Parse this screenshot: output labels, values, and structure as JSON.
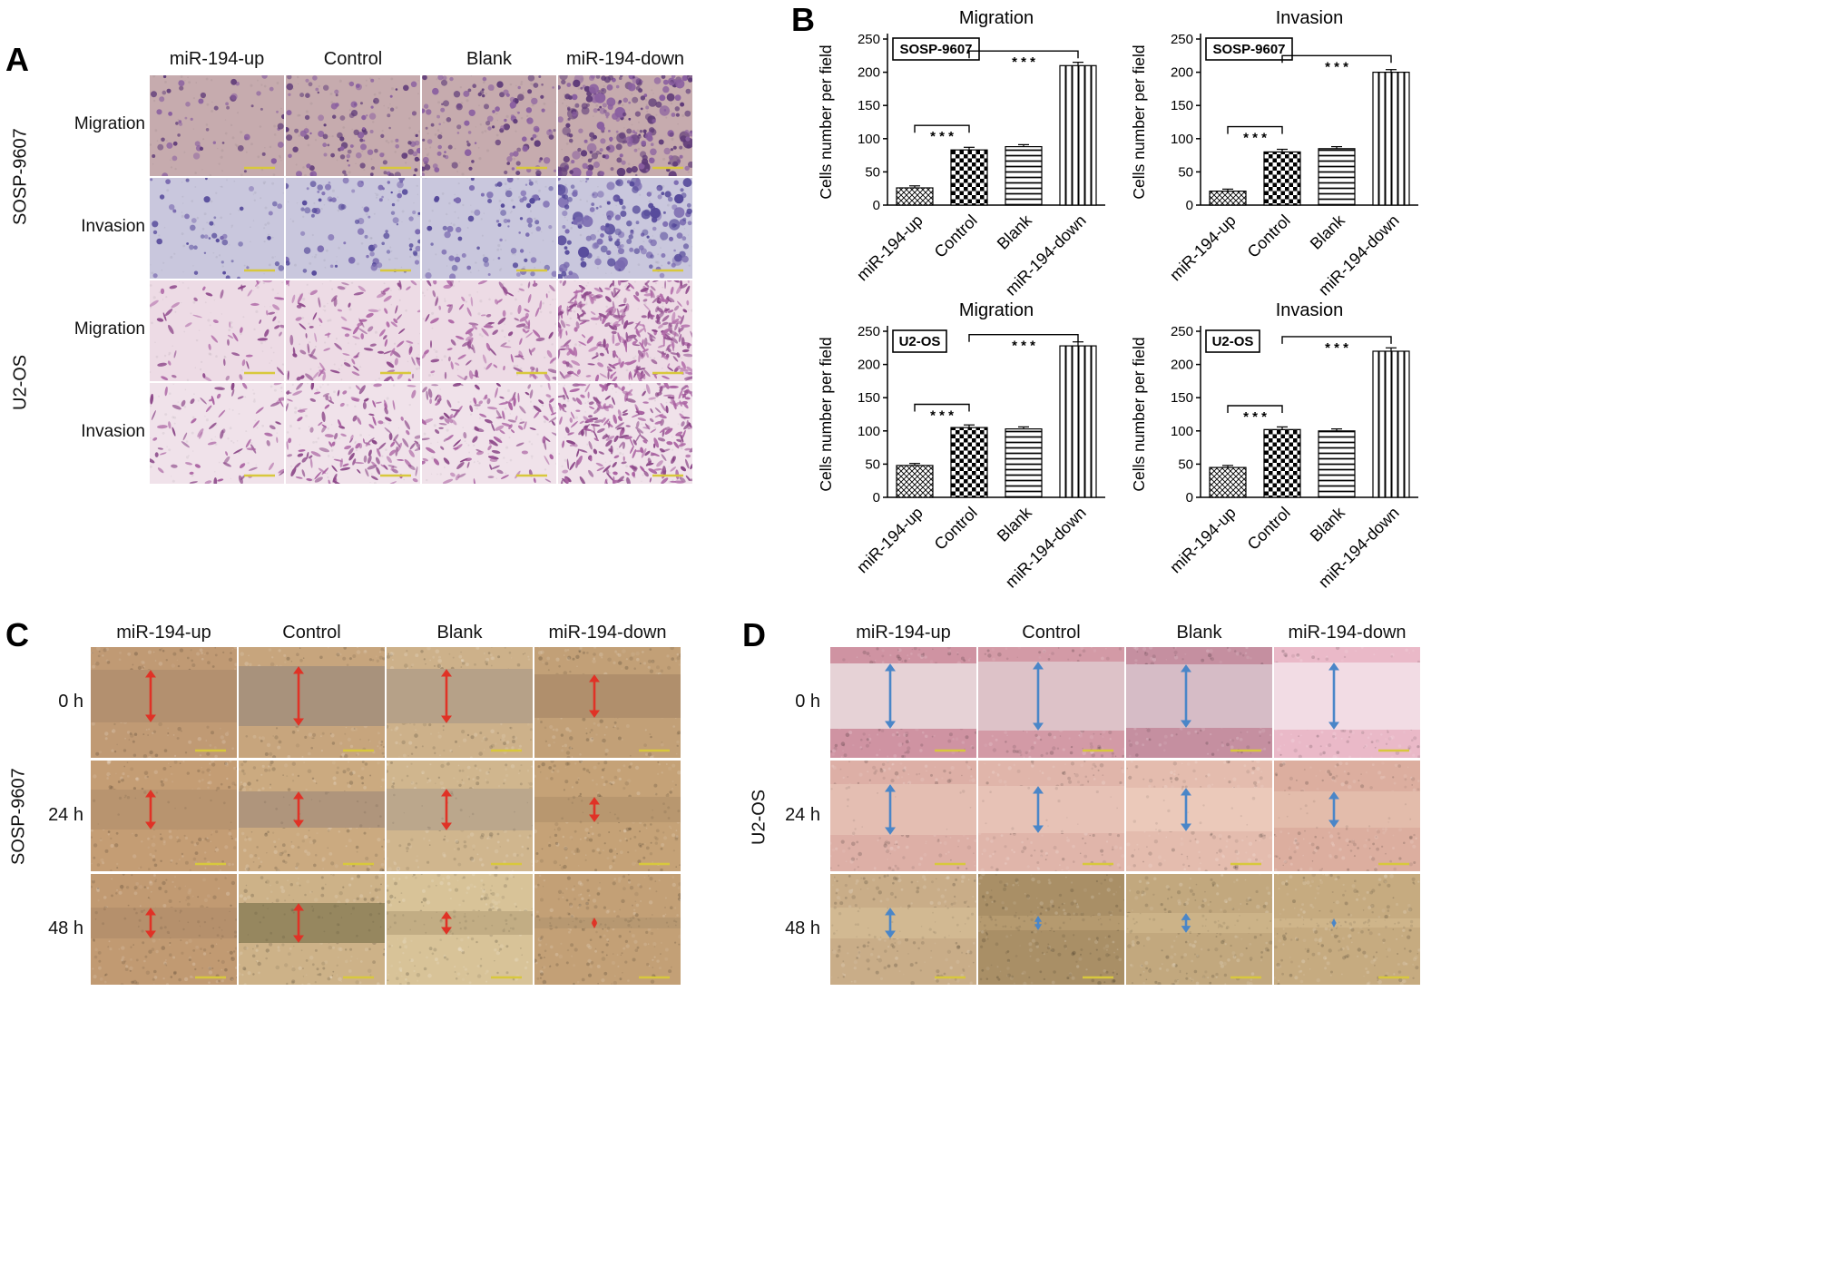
{
  "panelA": {
    "label": "A",
    "col_headers": [
      "miR-194-up",
      "Control",
      "Blank",
      "miR-194-down"
    ],
    "group_labels": [
      "SOSP-9607",
      "U2-OS"
    ],
    "row_labels": [
      "Migration",
      "Invasion",
      "Migration",
      "Invasion"
    ],
    "scale_bar_color": "#d8c83c",
    "micrograph_rows": [
      {
        "cell_line": "SOSP-9607",
        "assay": "Migration",
        "bg": "#c6abae",
        "dot": "#5e3a78",
        "dot2": "#8a5fa0",
        "shape": "round",
        "counts": [
          55,
          115,
          125,
          235
        ]
      },
      {
        "cell_line": "SOSP-9607",
        "assay": "Invasion",
        "bg": "#c9c7dd",
        "dot": "#54489a",
        "dot2": "#7a6ab0",
        "shape": "round",
        "counts": [
          45,
          85,
          75,
          165
        ]
      },
      {
        "cell_line": "U2-OS",
        "assay": "Migration",
        "bg": "#eddbe5",
        "dot": "#8f4a8c",
        "dot2": "#b06aa8",
        "shape": "spindle",
        "counts": [
          55,
          105,
          115,
          300
        ]
      },
      {
        "cell_line": "U2-OS",
        "assay": "Invasion",
        "bg": "#f0e2ea",
        "dot": "#8a4687",
        "dot2": "#aa62a2",
        "shape": "spindle",
        "counts": [
          70,
          140,
          130,
          260
        ]
      }
    ]
  },
  "panelB": {
    "label": "B"
  },
  "chart_data": [
    {
      "type": "bar",
      "title": "Migration",
      "cell_line": "SOSP-9607",
      "ylabel": "Cells number per field",
      "ylim": [
        0,
        250
      ],
      "yticks": [
        0,
        50,
        100,
        150,
        200,
        250
      ],
      "categories": [
        "miR-194-up",
        "Control",
        "Blank",
        "miR-194-down"
      ],
      "values": [
        26,
        83,
        88,
        210
      ],
      "errors": [
        3,
        4,
        3,
        5
      ],
      "bar_patterns": [
        "diagonal-crosshatch",
        "checkerboard",
        "horizontal-lines",
        "vertical-lines"
      ],
      "significance": [
        {
          "from": 0,
          "to": 1,
          "y": 120,
          "label": "* * *"
        },
        {
          "from": 1,
          "to": 3,
          "y": 232,
          "label": "* * *"
        }
      ]
    },
    {
      "type": "bar",
      "title": "Invasion",
      "cell_line": "SOSP-9607",
      "ylabel": "Cells number per field",
      "ylim": [
        0,
        250
      ],
      "yticks": [
        0,
        50,
        100,
        150,
        200,
        250
      ],
      "categories": [
        "miR-194-up",
        "Control",
        "Blank",
        "miR-194-down"
      ],
      "values": [
        21,
        80,
        85,
        200
      ],
      "errors": [
        3,
        4,
        3,
        4
      ],
      "bar_patterns": [
        "diagonal-crosshatch",
        "checkerboard",
        "horizontal-lines",
        "vertical-lines"
      ],
      "significance": [
        {
          "from": 0,
          "to": 1,
          "y": 118,
          "label": "* * *"
        },
        {
          "from": 1,
          "to": 3,
          "y": 225,
          "label": "* * *"
        }
      ]
    },
    {
      "type": "bar",
      "title": "Migration",
      "cell_line": "U2-OS",
      "ylabel": "Cells number per field",
      "ylim": [
        0,
        250
      ],
      "yticks": [
        0,
        50,
        100,
        150,
        200,
        250
      ],
      "categories": [
        "miR-194-up",
        "Control",
        "Blank",
        "miR-194-down"
      ],
      "values": [
        48,
        105,
        103,
        228
      ],
      "errors": [
        3,
        4,
        3,
        6
      ],
      "bar_patterns": [
        "diagonal-crosshatch",
        "checkerboard",
        "horizontal-lines",
        "vertical-lines"
      ],
      "significance": [
        {
          "from": 0,
          "to": 1,
          "y": 140,
          "label": "* * *"
        },
        {
          "from": 1,
          "to": 3,
          "y": 245,
          "label": "* * *"
        }
      ]
    },
    {
      "type": "bar",
      "title": "Invasion",
      "cell_line": "U2-OS",
      "ylabel": "Cells number per field",
      "ylim": [
        0,
        250
      ],
      "yticks": [
        0,
        50,
        100,
        150,
        200,
        250
      ],
      "categories": [
        "miR-194-up",
        "Control",
        "Blank",
        "miR-194-down"
      ],
      "values": [
        45,
        102,
        100,
        220
      ],
      "errors": [
        3,
        4,
        3,
        5
      ],
      "bar_patterns": [
        "diagonal-crosshatch",
        "checkerboard",
        "horizontal-lines",
        "vertical-lines"
      ],
      "significance": [
        {
          "from": 0,
          "to": 1,
          "y": 138,
          "label": "* * *"
        },
        {
          "from": 1,
          "to": 3,
          "y": 242,
          "label": "* * *"
        }
      ]
    }
  ],
  "panelC": {
    "label": "C",
    "cell_line": "SOSP-9607",
    "col_headers": [
      "miR-194-up",
      "Control",
      "Blank",
      "miR-194-down"
    ],
    "row_labels": [
      "0 h",
      "24 h",
      "48 h"
    ],
    "arrow_color": "#e03226",
    "scale_bar_color": "#d8c83c",
    "rows": [
      {
        "time": "0 h",
        "images": [
          {
            "bg": "#c09a74",
            "band": "#b3906f",
            "gap": 58
          },
          {
            "bg": "#c7a57d",
            "band": "#a8927c",
            "gap": 66
          },
          {
            "bg": "#cdb18a",
            "band": "#b6a188",
            "gap": 60
          },
          {
            "bg": "#c2a077",
            "band": "#b08f6c",
            "gap": 48
          }
        ]
      },
      {
        "time": "24 h",
        "images": [
          {
            "bg": "#c49d74",
            "band": "#b8946f",
            "gap": 44
          },
          {
            "bg": "#cbaa80",
            "band": "#af957c",
            "gap": 40
          },
          {
            "bg": "#d0b68e",
            "band": "#bba78c",
            "gap": 46
          },
          {
            "bg": "#c5a277",
            "band": "#b8976f",
            "gap": 28
          }
        ]
      },
      {
        "time": "48 h",
        "images": [
          {
            "bg": "#c19a72",
            "band": "#b5906c",
            "gap": 34
          },
          {
            "bg": "#cdb288",
            "band": "#96875f",
            "gap": 44
          },
          {
            "bg": "#d8c398",
            "band": "#c2ad84",
            "gap": 26
          },
          {
            "bg": "#c3a076",
            "band": "#b79871",
            "gap": 12
          }
        ]
      }
    ]
  },
  "panelD": {
    "label": "D",
    "cell_line": "U2-OS",
    "col_headers": [
      "miR-194-up",
      "Control",
      "Blank",
      "miR-194-down"
    ],
    "row_labels": [
      "0 h",
      "24 h",
      "48 h"
    ],
    "arrow_color": "#4a86c8",
    "scale_bar_color": "#d8c83c",
    "rows": [
      {
        "time": "0 h",
        "images": [
          {
            "bg": "#cf93a2",
            "band": "#e6d2d6",
            "gap": 72
          },
          {
            "bg": "#d39aa6",
            "band": "#ddc2c8",
            "gap": 76
          },
          {
            "bg": "#c58fa0",
            "band": "#d6bcc6",
            "gap": 70
          },
          {
            "bg": "#eab9c8",
            "band": "#f2dce4",
            "gap": 74
          }
        ]
      },
      {
        "time": "24 h",
        "images": [
          {
            "bg": "#ddafa6",
            "band": "#e4beb2",
            "gap": 56
          },
          {
            "bg": "#e0b5aa",
            "band": "#e7c2b6",
            "gap": 52
          },
          {
            "bg": "#e4bcae",
            "band": "#ebc9ba",
            "gap": 48
          },
          {
            "bg": "#dcae9f",
            "band": "#e3bcab",
            "gap": 40
          }
        ]
      },
      {
        "time": "48 h",
        "images": [
          {
            "bg": "#c9ad88",
            "band": "#d2b992",
            "gap": 34
          },
          {
            "bg": "#a98f66",
            "band": "#b59a6f",
            "gap": 16
          },
          {
            "bg": "#c2a87e",
            "band": "#ccb388",
            "gap": 22
          },
          {
            "bg": "#c6ab80",
            "band": "#cfb58a",
            "gap": 10
          }
        ]
      }
    ]
  }
}
